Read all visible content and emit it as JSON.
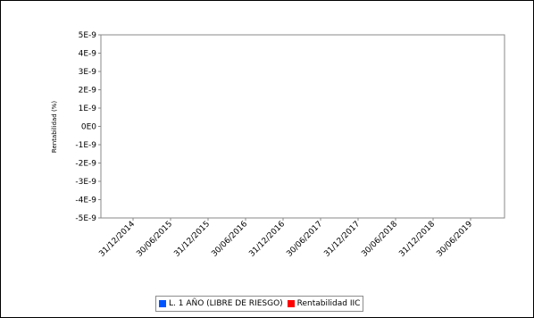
{
  "chart_data": {
    "type": "line",
    "title": "",
    "xlabel": "",
    "ylabel": "Rentabilidad (%)",
    "y_ticks": [
      "5E-9",
      "4E-9",
      "3E-9",
      "2E-9",
      "1E-9",
      "0E0",
      "-1E-9",
      "-2E-9",
      "-3E-9",
      "-4E-9",
      "-5E-9"
    ],
    "ylim": [
      -5e-09,
      5e-09
    ],
    "x_ticks": [
      "31/12/2014",
      "30/06/2015",
      "31/12/2015",
      "30/06/2016",
      "31/12/2016",
      "30/06/2017",
      "31/12/2017",
      "30/06/2018",
      "31/12/2018",
      "30/06/2019"
    ],
    "grid": false,
    "legend_position": "bottom",
    "series": [
      {
        "name": "L. 1 AÑO (LIBRE DE RIESGO)",
        "color": "#0055ff",
        "values": []
      },
      {
        "name": "Rentabilidad IIC",
        "color": "#ff0000",
        "values": []
      }
    ]
  }
}
